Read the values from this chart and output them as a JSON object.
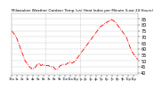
{
  "title": "Milwaukee Weather Outdoor Temp (vs) Heat Index per Minute (Last 24 Hours)",
  "background_color": "#ffffff",
  "plot_bg_color": "#ffffff",
  "line_color": "#ff0000",
  "line_style": "-.",
  "line_width": 0.6,
  "grid_color": "#cccccc",
  "vline_color": "#aaaaaa",
  "vline_style": ":",
  "vline_positions": [
    0.27,
    0.54
  ],
  "ylim": [
    38,
    90
  ],
  "yticks": [
    40,
    45,
    50,
    55,
    60,
    65,
    70,
    75,
    80,
    85
  ],
  "ytick_fontsize": 3.5,
  "xtick_fontsize": 2.5,
  "title_fontsize": 3.0,
  "num_points": 144,
  "y_values": [
    75,
    74,
    73,
    72,
    71,
    70,
    68,
    66,
    64,
    62,
    60,
    58,
    56,
    54,
    52,
    50,
    49,
    48,
    47,
    46,
    45,
    44,
    44,
    43,
    43,
    44,
    44,
    45,
    46,
    47,
    47,
    48,
    47,
    46,
    46,
    47,
    47,
    46,
    46,
    46,
    46,
    46,
    46,
    45,
    45,
    45,
    45,
    45,
    44,
    43,
    43,
    43,
    43,
    44,
    45,
    46,
    46,
    47,
    47,
    47,
    47,
    47,
    47,
    48,
    48,
    48,
    49,
    49,
    48,
    48,
    49,
    49,
    50,
    51,
    52,
    53,
    54,
    55,
    56,
    57,
    58,
    59,
    60,
    61,
    62,
    63,
    64,
    65,
    66,
    67,
    68,
    69,
    70,
    71,
    72,
    73,
    74,
    75,
    76,
    77,
    78,
    79,
    79,
    80,
    80,
    81,
    81,
    82,
    82,
    83,
    83,
    84,
    84,
    85,
    84,
    84,
    83,
    83,
    82,
    81,
    80,
    79,
    78,
    77,
    76,
    75,
    74,
    73,
    72,
    71,
    70,
    68,
    66,
    64,
    62,
    60,
    58,
    57,
    56,
    55,
    54,
    53,
    52,
    51
  ],
  "xtick_hour_positions": [
    0,
    6,
    12,
    18,
    24,
    30,
    36,
    42,
    48,
    54,
    60,
    66,
    72,
    78,
    84,
    90,
    96,
    102,
    108,
    114,
    120,
    126,
    132,
    138
  ],
  "xtick_hour_labels": [
    "12a",
    "1a",
    "2a",
    "3a",
    "4a",
    "5a",
    "6a",
    "7a",
    "8a",
    "9a",
    "10a",
    "11a",
    "12p",
    "1p",
    "2p",
    "3p",
    "4p",
    "5p",
    "6p",
    "7p",
    "8p",
    "9p",
    "10p",
    "11p"
  ]
}
